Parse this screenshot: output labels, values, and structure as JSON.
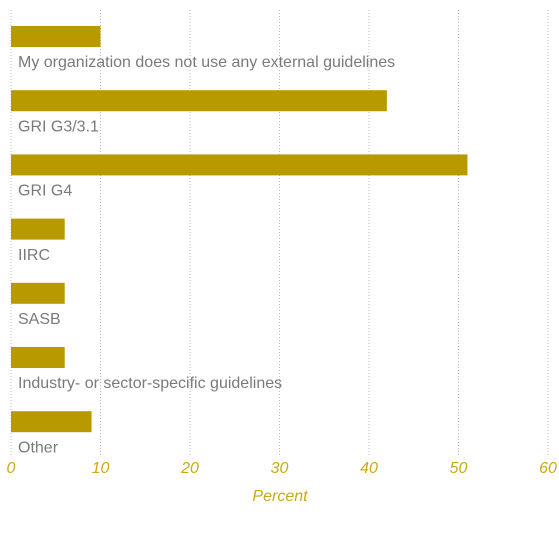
{
  "chart_data": {
    "type": "bar",
    "orientation": "horizontal",
    "categories": [
      "My organization does not use any external guidelines",
      "GRI G3/3.1",
      "GRI G4",
      "IIRC",
      "SASB",
      "Industry- or sector-specific guidelines",
      "Other"
    ],
    "values": [
      10,
      42,
      51,
      6,
      6,
      6,
      9
    ],
    "color": "#b89a00",
    "x_label": "Percent",
    "xlim": [
      0,
      60
    ],
    "xticks": [
      0,
      10,
      20,
      30,
      40,
      50,
      60
    ],
    "grid": true
  }
}
